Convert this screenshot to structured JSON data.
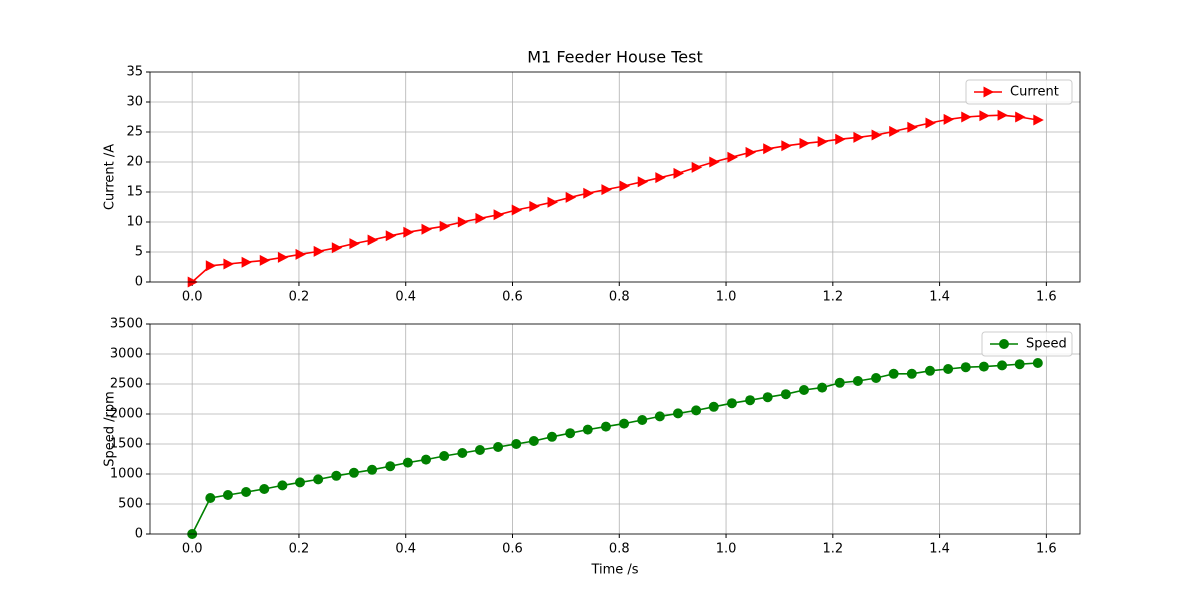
{
  "chart_data": [
    {
      "type": "line",
      "title": "M1 Feeder House Test",
      "y_label": "Current /A",
      "x": [
        0,
        0.034,
        0.067,
        0.101,
        0.135,
        0.169,
        0.202,
        0.236,
        0.27,
        0.303,
        0.337,
        0.371,
        0.404,
        0.438,
        0.472,
        0.506,
        0.539,
        0.573,
        0.607,
        0.64,
        0.674,
        0.708,
        0.741,
        0.775,
        0.809,
        0.843,
        0.876,
        0.91,
        0.944,
        0.977,
        1.011,
        1.045,
        1.078,
        1.112,
        1.146,
        1.18,
        1.213,
        1.247,
        1.281,
        1.314,
        1.348,
        1.382,
        1.416,
        1.449,
        1.483,
        1.517,
        1.55,
        1.584
      ],
      "series": [
        {
          "name": "Current",
          "color": "#ff0000",
          "marker": "triangle-right",
          "values": [
            0,
            2.7,
            3.0,
            3.3,
            3.6,
            4.1,
            4.6,
            5.1,
            5.7,
            6.4,
            7.0,
            7.7,
            8.3,
            8.8,
            9.3,
            10.0,
            10.6,
            11.2,
            12.0,
            12.6,
            13.3,
            14.1,
            14.8,
            15.4,
            16.0,
            16.7,
            17.4,
            18.1,
            19.1,
            20.0,
            20.8,
            21.6,
            22.2,
            22.7,
            23.1,
            23.4,
            23.8,
            24.1,
            24.5,
            25.1,
            25.8,
            26.5,
            27.1,
            27.5,
            27.7,
            27.8,
            27.5,
            27.0
          ]
        }
      ],
      "xlim": [
        -0.079,
        1.663
      ],
      "ylim": [
        0,
        35
      ],
      "xticks": [
        {
          "value": 0,
          "label": "0.0"
        },
        0.2,
        0.4,
        0.6,
        0.8,
        {
          "value": 1,
          "label": "1.0"
        },
        1.2,
        1.4,
        1.6
      ],
      "yticks": [
        0,
        5,
        10,
        15,
        20,
        25,
        30,
        35
      ],
      "grid": true,
      "legend": "upper-right"
    },
    {
      "type": "line",
      "x_label": "Time /s",
      "y_label": "Speed /rpm",
      "x": [
        0,
        0.034,
        0.067,
        0.101,
        0.135,
        0.169,
        0.202,
        0.236,
        0.27,
        0.303,
        0.337,
        0.371,
        0.404,
        0.438,
        0.472,
        0.506,
        0.539,
        0.573,
        0.607,
        0.64,
        0.674,
        0.708,
        0.741,
        0.775,
        0.809,
        0.843,
        0.876,
        0.91,
        0.944,
        0.977,
        1.011,
        1.045,
        1.078,
        1.112,
        1.146,
        1.18,
        1.213,
        1.247,
        1.281,
        1.314,
        1.348,
        1.382,
        1.416,
        1.449,
        1.483,
        1.517,
        1.55,
        1.584
      ],
      "series": [
        {
          "name": "Speed",
          "color": "#008000",
          "marker": "circle",
          "values": [
            0,
            600,
            650,
            700,
            750,
            810,
            860,
            910,
            970,
            1020,
            1070,
            1130,
            1190,
            1240,
            1300,
            1350,
            1400,
            1450,
            1500,
            1550,
            1620,
            1680,
            1740,
            1790,
            1840,
            1900,
            1960,
            2010,
            2060,
            2120,
            2180,
            2230,
            2280,
            2330,
            2400,
            2440,
            2520,
            2550,
            2600,
            2670,
            2670,
            2720,
            2750,
            2780,
            2790,
            2810,
            2830,
            2850
          ]
        }
      ],
      "xlim": [
        -0.079,
        1.663
      ],
      "ylim": [
        0,
        3500
      ],
      "xticks": [
        {
          "value": 0,
          "label": "0.0"
        },
        0.2,
        0.4,
        0.6,
        0.8,
        {
          "value": 1,
          "label": "1.0"
        },
        1.2,
        1.4,
        1.6
      ],
      "yticks": [
        0,
        500,
        1000,
        1500,
        2000,
        2500,
        3000,
        3500
      ],
      "grid": true,
      "legend": "upper-right"
    }
  ]
}
